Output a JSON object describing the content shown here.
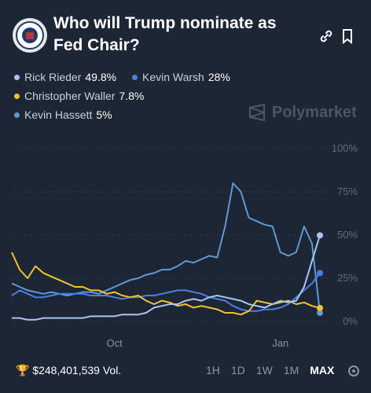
{
  "header": {
    "title": "Who will Trump nominate as Fed Chair?"
  },
  "watermark": "Polymarket",
  "chart_data": {
    "type": "line",
    "categories": [
      null,
      null,
      null,
      null,
      null,
      null,
      null,
      null,
      null,
      null,
      null,
      null,
      null,
      "Oct",
      null,
      null,
      null,
      null,
      null,
      null,
      null,
      null,
      null,
      null,
      null,
      null,
      null,
      null,
      null,
      null,
      null,
      null,
      null,
      null,
      "Jan",
      null,
      null,
      null,
      null,
      null
    ],
    "series": [
      {
        "name": "Rick Rieder",
        "color": "#a9c6f4",
        "current": {
          "value": 49.8,
          "label": "49.8%"
        },
        "values": [
          2,
          2,
          1,
          1,
          2,
          2,
          2,
          2,
          2,
          2,
          3,
          3,
          3,
          3,
          4,
          4,
          4,
          5,
          8,
          9,
          10,
          10,
          12,
          13,
          12,
          14,
          15,
          14,
          13,
          12,
          10,
          9,
          8,
          10,
          12,
          11,
          12,
          20,
          35,
          49.8
        ]
      },
      {
        "name": "Kevin Warsh",
        "color": "#4d7ee8",
        "current": {
          "value": 28,
          "label": "28%"
        },
        "values": [
          15,
          18,
          16,
          14,
          14,
          15,
          16,
          16,
          16,
          16,
          15,
          15,
          15,
          14,
          13,
          14,
          14,
          15,
          15,
          16,
          17,
          18,
          18,
          17,
          16,
          14,
          13,
          12,
          9,
          7,
          6,
          6,
          7,
          7,
          8,
          10,
          14,
          18,
          22,
          28
        ]
      },
      {
        "name": "Christopher Waller",
        "color": "#f2c230",
        "current": {
          "value": 7.8,
          "label": "7.8%"
        },
        "values": [
          40,
          30,
          25,
          32,
          28,
          26,
          24,
          22,
          20,
          20,
          18,
          18,
          16,
          17,
          15,
          14,
          15,
          12,
          10,
          12,
          11,
          9,
          10,
          8,
          9,
          8,
          7,
          5,
          5,
          4,
          6,
          12,
          11,
          10,
          11,
          12,
          10,
          11,
          9,
          7.8
        ]
      },
      {
        "name": "Kevin Hassett",
        "color": "#5b9bd5",
        "current": {
          "value": 5,
          "label": "5%"
        },
        "values": [
          22,
          20,
          18,
          17,
          16,
          17,
          16,
          15,
          16,
          17,
          17,
          16,
          18,
          20,
          22,
          24,
          25,
          27,
          28,
          30,
          30,
          32,
          35,
          34,
          36,
          38,
          37,
          55,
          80,
          75,
          60,
          58,
          56,
          55,
          40,
          38,
          40,
          55,
          45,
          5
        ]
      }
    ],
    "ylim": [
      0,
      100
    ],
    "yticks": [
      {
        "value": 0,
        "label": "0%"
      },
      {
        "value": 25,
        "label": "25%"
      },
      {
        "value": 50,
        "label": "50%"
      },
      {
        "value": 75,
        "label": "75%"
      },
      {
        "value": 100,
        "label": "100%"
      }
    ],
    "grid": true
  },
  "footer": {
    "volume": "$248,401,539 Vol.",
    "ranges": [
      "1H",
      "1D",
      "1W",
      "1M",
      "MAX"
    ],
    "selected": "MAX"
  }
}
